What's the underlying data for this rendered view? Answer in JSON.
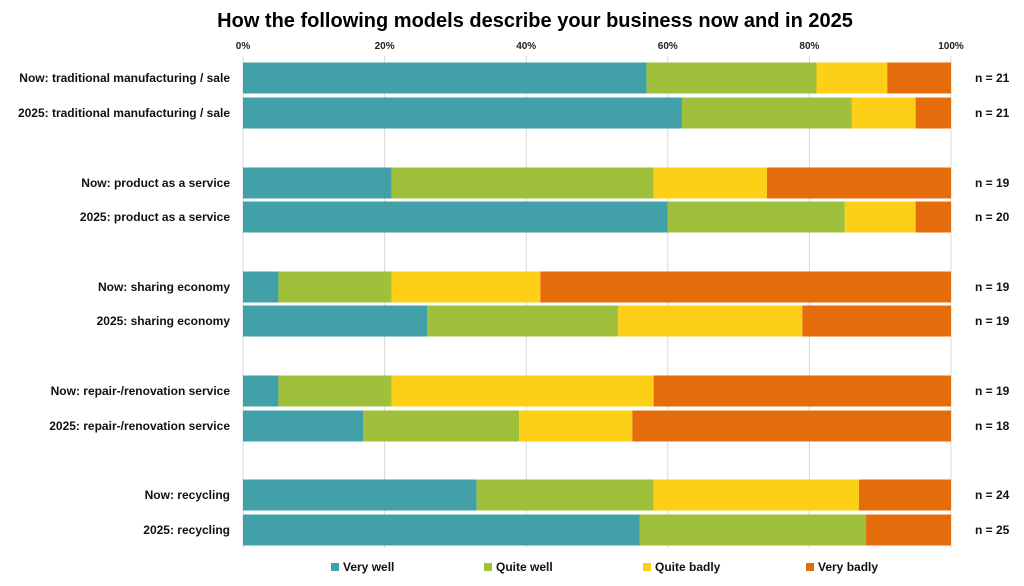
{
  "chart_data": {
    "type": "bar",
    "orientation": "horizontal",
    "stacked": true,
    "title": "How the following models describe your business now and in 2025",
    "x_tick_labels": [
      "0%",
      "20%",
      "40%",
      "60%",
      "80%",
      "100%"
    ],
    "xlim": [
      0,
      100
    ],
    "grid": true,
    "legend_placement": "bottom",
    "categories": [
      "Now: traditional manufacturing / sale",
      "2025: traditional manufacturing / sale",
      "Now: product as a service",
      "2025: product as a service",
      "Now: sharing economy",
      "2025: sharing economy",
      "Now: repair-/renovation service",
      "2025: repair-/renovation service",
      "Now: recycling",
      "2025: recycling"
    ],
    "n_labels": [
      "n = 21",
      "n = 21",
      "n = 19",
      "n = 20",
      "n = 19",
      "n = 19",
      "n = 19",
      "n = 18",
      "n = 24",
      "n = 25"
    ],
    "series": [
      {
        "name": "Very well",
        "color": "#42A0A8",
        "values": [
          57,
          62,
          21,
          60,
          5,
          26,
          5,
          17,
          33,
          56
        ]
      },
      {
        "name": "Quite well",
        "color": "#9FC03A",
        "values": [
          24,
          24,
          37,
          25,
          16,
          27,
          16,
          22,
          25,
          32
        ]
      },
      {
        "name": "Quite badly",
        "color": "#FDD017",
        "values": [
          10,
          9,
          16,
          10,
          21,
          26,
          37,
          16,
          29,
          0
        ]
      },
      {
        "name": "Very badly",
        "color": "#E46C0A",
        "values": [
          9,
          5,
          26,
          5,
          58,
          21,
          42,
          45,
          13,
          12
        ]
      }
    ]
  }
}
